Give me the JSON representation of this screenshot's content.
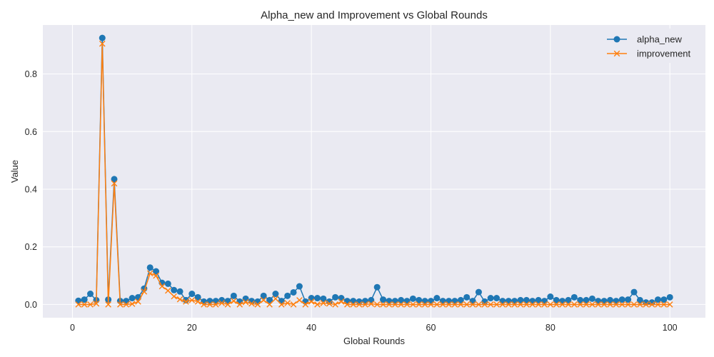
{
  "chart_data": {
    "type": "line",
    "title": "Alpha_new and Improvement vs Global Rounds",
    "xlabel": "Global Rounds",
    "ylabel": "Value",
    "xlim": [
      -4.95,
      105.95
    ],
    "ylim": [
      -0.046,
      0.97
    ],
    "xticks": [
      0,
      20,
      40,
      60,
      80,
      100
    ],
    "yticks": [
      0.0,
      0.2,
      0.4,
      0.6,
      0.8
    ],
    "xtick_labels": [
      "0",
      "20",
      "40",
      "60",
      "80",
      "100"
    ],
    "ytick_labels": [
      "0.0",
      "0.2",
      "0.4",
      "0.6",
      "0.8"
    ],
    "grid": true,
    "legend_position": "top-right",
    "x": [
      1,
      2,
      3,
      4,
      5,
      6,
      7,
      8,
      9,
      10,
      11,
      12,
      13,
      14,
      15,
      16,
      17,
      18,
      19,
      20,
      21,
      22,
      23,
      24,
      25,
      26,
      27,
      28,
      29,
      30,
      31,
      32,
      33,
      34,
      35,
      36,
      37,
      38,
      39,
      40,
      41,
      42,
      43,
      44,
      45,
      46,
      47,
      48,
      49,
      50,
      51,
      52,
      53,
      54,
      55,
      56,
      57,
      58,
      59,
      60,
      61,
      62,
      63,
      64,
      65,
      66,
      67,
      68,
      69,
      70,
      71,
      72,
      73,
      74,
      75,
      76,
      77,
      78,
      79,
      80,
      81,
      82,
      83,
      84,
      85,
      86,
      87,
      88,
      89,
      90,
      91,
      92,
      93,
      94,
      95,
      96,
      97,
      98,
      99,
      100
    ],
    "series": [
      {
        "name": "alpha_new",
        "color": "#1f77b4",
        "marker": "circle",
        "values": [
          0.013,
          0.017,
          0.037,
          0.015,
          0.925,
          0.017,
          0.435,
          0.012,
          0.012,
          0.022,
          0.025,
          0.055,
          0.128,
          0.115,
          0.075,
          0.072,
          0.05,
          0.045,
          0.015,
          0.037,
          0.025,
          0.01,
          0.012,
          0.012,
          0.015,
          0.012,
          0.03,
          0.01,
          0.02,
          0.012,
          0.01,
          0.03,
          0.015,
          0.037,
          0.012,
          0.03,
          0.042,
          0.063,
          0.01,
          0.022,
          0.022,
          0.02,
          0.01,
          0.025,
          0.022,
          0.012,
          0.012,
          0.01,
          0.012,
          0.015,
          0.06,
          0.017,
          0.012,
          0.012,
          0.015,
          0.012,
          0.02,
          0.015,
          0.012,
          0.012,
          0.022,
          0.012,
          0.012,
          0.012,
          0.015,
          0.025,
          0.012,
          0.043,
          0.01,
          0.022,
          0.022,
          0.012,
          0.012,
          0.012,
          0.015,
          0.015,
          0.012,
          0.015,
          0.012,
          0.027,
          0.015,
          0.012,
          0.015,
          0.025,
          0.015,
          0.015,
          0.02,
          0.012,
          0.012,
          0.015,
          0.012,
          0.017,
          0.017,
          0.043,
          0.015,
          0.007,
          0.007,
          0.017,
          0.017,
          0.025
        ]
      },
      {
        "name": "improvement",
        "color": "#ff7f0e",
        "marker": "x",
        "values": [
          0.0,
          0.0,
          0.0,
          0.003,
          0.905,
          0.0,
          0.42,
          0.0,
          0.0,
          0.002,
          0.01,
          0.045,
          0.108,
          0.1,
          0.063,
          0.048,
          0.028,
          0.018,
          0.01,
          0.015,
          0.01,
          0.0,
          0.0,
          0.0,
          0.005,
          0.0,
          0.012,
          0.0,
          0.008,
          0.003,
          0.0,
          0.015,
          0.0,
          0.02,
          0.0,
          0.005,
          0.0,
          0.015,
          0.0,
          0.01,
          0.0,
          0.005,
          0.003,
          0.0,
          0.01,
          0.0,
          0.0,
          0.0,
          0.0,
          0.002,
          0.0,
          0.0,
          0.0,
          0.0,
          0.0,
          0.0,
          0.0,
          0.0,
          0.0,
          0.0,
          0.0,
          0.0,
          0.0,
          0.0,
          0.0,
          0.0,
          0.0,
          0.0,
          0.0,
          0.0,
          0.0,
          0.0,
          0.0,
          0.0,
          0.0,
          0.0,
          0.0,
          0.0,
          0.0,
          0.0,
          0.0,
          0.0,
          0.0,
          0.0,
          0.0,
          0.0,
          0.0,
          0.0,
          0.0,
          0.0,
          0.0,
          0.0,
          0.0,
          0.0,
          0.0,
          0.0,
          0.0,
          0.0,
          0.0,
          0.0
        ]
      }
    ]
  }
}
